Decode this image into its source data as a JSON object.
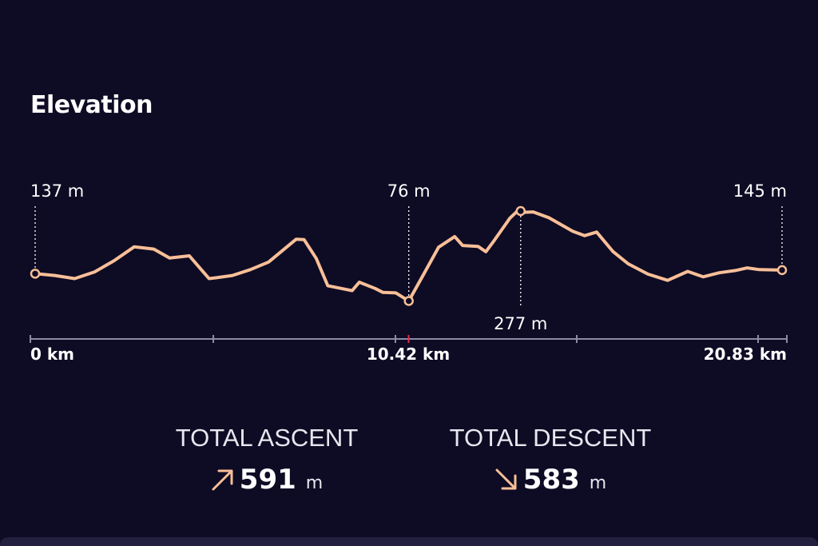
{
  "title": "Elevation",
  "chart_data": {
    "type": "line",
    "xlabel": "",
    "ylabel": "",
    "x_ticks": [
      "0 km",
      "10.42 km",
      "20.83 km"
    ],
    "x_range": [
      0,
      20.83
    ],
    "annotations": [
      {
        "label": "137 m",
        "x": 0,
        "y": 137
      },
      {
        "label": "76 m",
        "x": 10.42,
        "y": 76
      },
      {
        "label": "277 m",
        "x": 13.54,
        "y": 277
      },
      {
        "label": "145 m",
        "x": 20.83,
        "y": 145
      }
    ],
    "series": [
      {
        "x": [
          0,
          0.55,
          1.1,
          1.66,
          2.2,
          2.76,
          3.2,
          3.31,
          3.75,
          4.3,
          4.85,
          5.06,
          5.5,
          6.0,
          6.51,
          7.28,
          7.5,
          7.84,
          8.16,
          8.84,
          9.04,
          9.48,
          9.7,
          10.06,
          10.42,
          10.81,
          11.25,
          11.7,
          11.92,
          12.35,
          12.57,
          12.8,
          13.24,
          13.45,
          13.54,
          13.89,
          14.33,
          14.99,
          15.32,
          15.66,
          16.11,
          16.54,
          17.09,
          17.64,
          18.2,
          18.63,
          19.08,
          19.53,
          19.86,
          20.2,
          20.83
        ],
        "y": [
          137,
          133,
          126,
          141,
          166,
          197,
          193,
          192,
          172,
          177,
          126,
          128,
          133,
          146,
          163,
          214,
          213,
          171,
          110,
          99,
          118,
          104,
          95,
          94,
          76,
          132,
          196,
          220,
          200,
          198,
          186,
          211,
          261,
          277,
          274,
          275,
          262,
          232,
          222,
          230,
          187,
          159,
          136,
          122,
          142,
          130,
          139,
          144,
          150,
          146,
          145
        ]
      }
    ],
    "line_color": "#f8bf98",
    "axis_color": "#8c8aa6",
    "marker_color": "#e8294f"
  },
  "stats": {
    "ascent_label": "TOTAL ASCENT",
    "ascent_value": "591",
    "ascent_unit": "m",
    "descent_label": "TOTAL DESCENT",
    "descent_value": "583",
    "descent_unit": "m"
  }
}
